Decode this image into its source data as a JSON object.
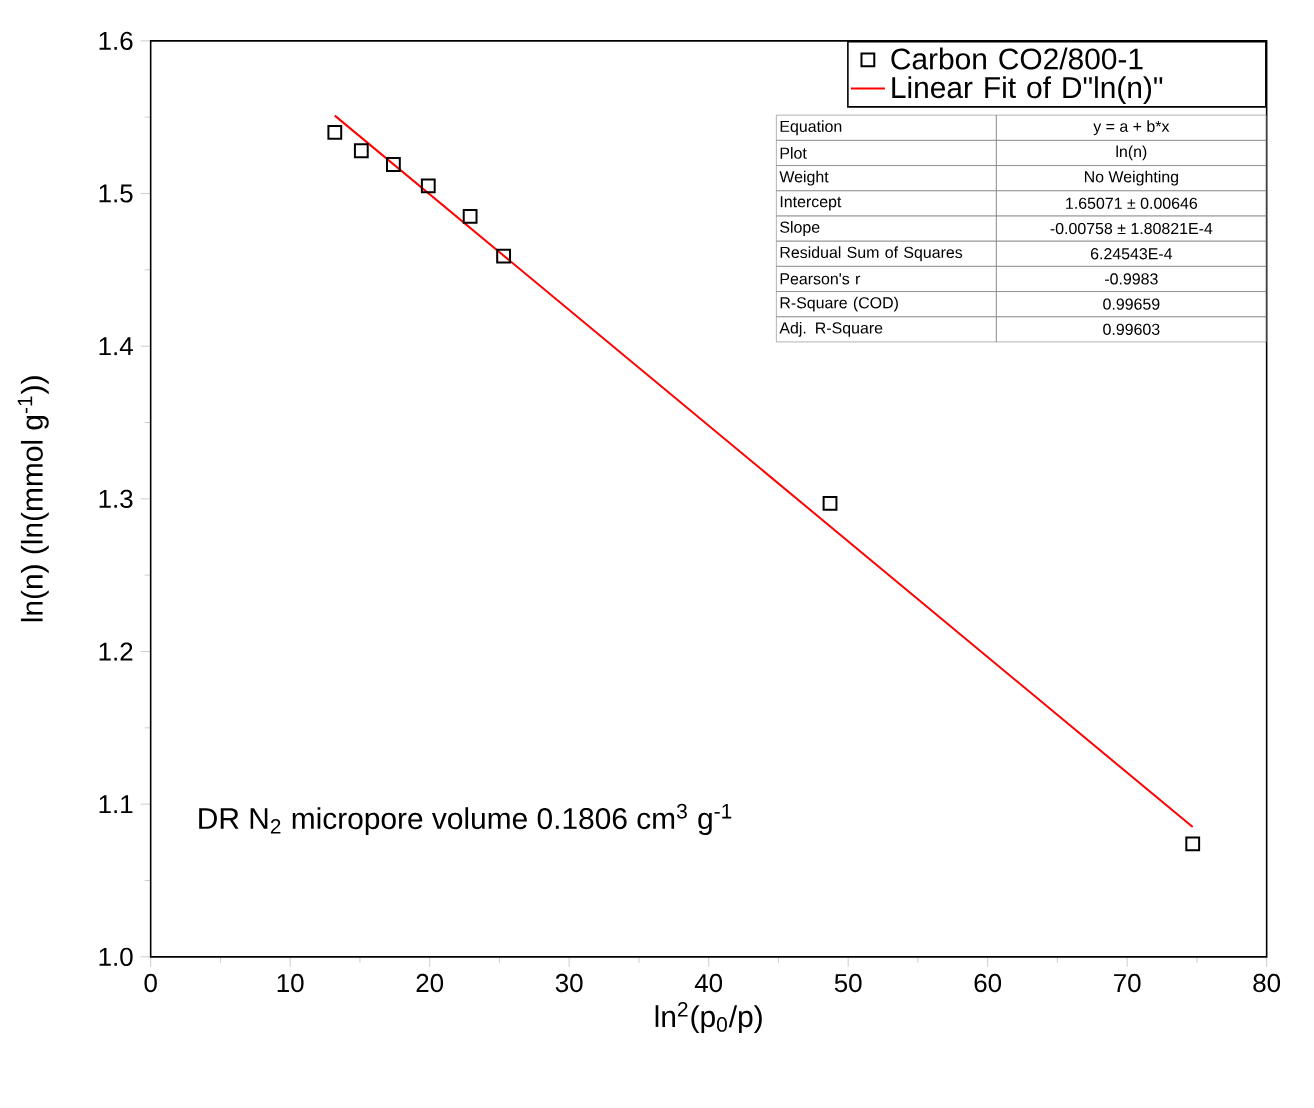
{
  "chart_data": {
    "type": "scatter",
    "xlabel": "ln$^{2}$(p$_{0}$/p)",
    "ylabel": "ln(n) (ln(mmol g$^{-1}$))",
    "xlim": [
      0,
      80
    ],
    "xticks": [
      0,
      10,
      20,
      30,
      40,
      50,
      60,
      70,
      80
    ],
    "ylim": [
      1.0,
      1.6
    ],
    "yticks": [
      {
        "value": 1.0,
        "label": "1.0"
      },
      1.1,
      1.2,
      1.3,
      1.4,
      1.5,
      1.6
    ],
    "grid": false,
    "legend": "top right",
    "series": [
      {
        "name": "Carbon CO2/800-1",
        "marker": "square",
        "color": "#000000",
        "x": [
          13.2,
          15.1,
          17.4,
          19.9,
          22.9,
          25.3,
          48.7,
          74.7
        ],
        "values": [
          1.54,
          1.528,
          1.519,
          1.505,
          1.485,
          1.459,
          1.297,
          1.074
        ]
      },
      {
        "name": "Linear Fit of D\"ln(n)\"",
        "type": "line",
        "marker": "none",
        "color": "#ff0000",
        "x": [
          13.2,
          74.7
        ],
        "values": [
          1.551,
          1.085
        ]
      }
    ],
    "annotations": [
      "DR N$_{2}$ micropore volume 0.1806 cm$^{3}$ g$^{-1}$",
      "Equation",
      "y = a + b*x",
      "Plot",
      "ln(n)",
      "Weight",
      "No Weighting",
      "Intercept",
      "1.65071 ± 0.00646",
      "Slope",
      "-0.00758 ± 1.80821E-4",
      "Residual Sum of Squares",
      "6.24543E-4",
      "Pearson's r",
      "-0.9983",
      "R-Square (COD)",
      "0.99659",
      "Adj. R-Square",
      "0.99603"
    ]
  }
}
